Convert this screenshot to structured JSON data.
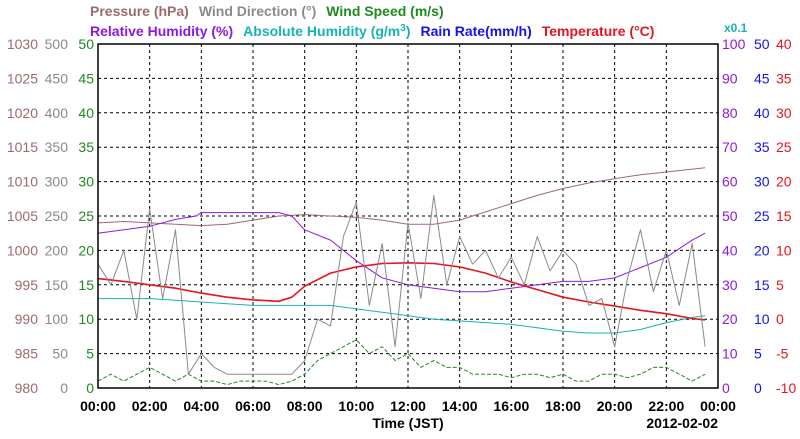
{
  "chart_data": {
    "type": "line",
    "date": "2012-02-02",
    "xlabel": "Time (JST)",
    "x_ticks": [
      "00:00",
      "02:00",
      "04:00",
      "06:00",
      "08:00",
      "10:00",
      "12:00",
      "14:00",
      "16:00",
      "18:00",
      "20:00",
      "22:00",
      "00:00"
    ],
    "x_range_hours": [
      0,
      24
    ],
    "grid": true,
    "legend": {
      "row1": [
        {
          "label": "Pressure (hPa)",
          "color": "#9c6b6b"
        },
        {
          "label": "Wind Direction (°)",
          "color": "#8a8a8a"
        },
        {
          "label": "Wind Speed (m/s)",
          "color": "#1f8a1f"
        }
      ],
      "row2": [
        {
          "label": "Relative Humidity (%)",
          "color": "#8a19e6"
        },
        {
          "label": "Absolute Humidity (g/m",
          "sup": "3",
          "close": ")",
          "color": "#17b3b3"
        },
        {
          "label": "Rain Rate(mm/h)",
          "color": "#1414e6"
        },
        {
          "label": "Temperature (°C)",
          "color": "#e6141e"
        }
      ],
      "abs_humidity_scale": "x0.1"
    },
    "axes": {
      "pressure": {
        "color": "#9c6b6b",
        "range": [
          980,
          1030
        ],
        "ticks": [
          "980",
          "985",
          "990",
          "995",
          "1000",
          "1005",
          "1010",
          "1015",
          "1020",
          "1025",
          "1030"
        ]
      },
      "wind_direction": {
        "color": "#8a8a8a",
        "range": [
          0,
          500
        ],
        "ticks": [
          "0",
          "50",
          "100",
          "150",
          "200",
          "250",
          "300",
          "350",
          "400",
          "450",
          "500"
        ]
      },
      "wind_speed": {
        "color": "#1f8a1f",
        "range": [
          0,
          50
        ],
        "ticks": [
          "0",
          "5",
          "10",
          "15",
          "20",
          "25",
          "30",
          "35",
          "40",
          "45",
          "50"
        ]
      },
      "relative_humidity": {
        "color": "#8a19e6",
        "range": [
          0,
          100
        ],
        "ticks": [
          "0",
          "10",
          "20",
          "30",
          "40",
          "50",
          "60",
          "70",
          "80",
          "90",
          "100"
        ]
      },
      "rain_rate": {
        "color": "#1414e6",
        "range": [
          0,
          50
        ],
        "ticks": [
          "0",
          "5",
          "10",
          "15",
          "20",
          "25",
          "30",
          "35",
          "40",
          "45",
          "50"
        ]
      },
      "temperature": {
        "color": "#e6141e",
        "range": [
          -10,
          40
        ],
        "ticks": [
          "-10",
          "-5",
          "0",
          "5",
          "10",
          "15",
          "20",
          "25",
          "30",
          "35",
          "40"
        ]
      }
    },
    "series": [
      {
        "name": "Pressure (hPa)",
        "color": "#9c6b6b",
        "axis": "pressure",
        "x": [
          0,
          1,
          2,
          3,
          4,
          5,
          6,
          7,
          8,
          9,
          10,
          11,
          12,
          13,
          14,
          15,
          16,
          17,
          18,
          19,
          20,
          21,
          22,
          23.5
        ],
        "y": [
          1004.0,
          1004.2,
          1004.0,
          1003.8,
          1003.6,
          1003.8,
          1004.4,
          1005.0,
          1005.2,
          1005.0,
          1004.8,
          1004.4,
          1003.8,
          1003.8,
          1004.4,
          1005.6,
          1006.8,
          1008.0,
          1009.0,
          1009.8,
          1010.4,
          1011.0,
          1011.4,
          1012.0
        ]
      },
      {
        "name": "Relative Humidity (%)",
        "color": "#8a19e6",
        "axis": "relative_humidity",
        "x": [
          0,
          1,
          2,
          3,
          3.8,
          4,
          5,
          6,
          7,
          7.5,
          8,
          9,
          10,
          11,
          12,
          13,
          14,
          15,
          16,
          17,
          18,
          19,
          20,
          21,
          22,
          23,
          23.5
        ],
        "y": [
          45,
          46,
          47,
          49,
          50,
          51,
          51,
          51,
          51,
          50,
          46,
          43,
          37,
          32,
          30,
          29,
          28,
          28,
          29,
          30,
          31,
          31,
          32,
          35,
          38,
          43,
          45
        ]
      },
      {
        "name": "Absolute Humidity (g/m3) x0.1",
        "color": "#17b3b3",
        "axis": "relative_humidity",
        "x": [
          0,
          1,
          2,
          3,
          4,
          5,
          6,
          7,
          8,
          9,
          10,
          11,
          12,
          13,
          14,
          15,
          16,
          17,
          18,
          19,
          20,
          21,
          22,
          23,
          23.5
        ],
        "y": [
          26,
          26,
          26,
          25.5,
          25,
          24.5,
          24,
          24,
          24,
          24,
          23,
          22,
          21,
          20,
          19.5,
          19,
          18.5,
          17.5,
          16.5,
          16,
          16,
          17,
          19,
          20.5,
          21
        ]
      },
      {
        "name": "Temperature (°C)",
        "color": "#e6141e",
        "axis": "temperature",
        "x": [
          0,
          1,
          2,
          3,
          4,
          5,
          6,
          7,
          7.5,
          8,
          9,
          10,
          11,
          12,
          13,
          14,
          15,
          16,
          17,
          18,
          19,
          20,
          21,
          22,
          23,
          23.5
        ],
        "y": [
          5.9,
          5.5,
          5.0,
          4.5,
          3.8,
          3.2,
          2.8,
          2.6,
          3.2,
          4.8,
          6.7,
          7.6,
          8.1,
          8.2,
          8.1,
          7.6,
          6.7,
          5.4,
          4.3,
          3.2,
          2.5,
          1.9,
          1.3,
          0.8,
          0.1,
          -0.1
        ]
      },
      {
        "name": "Wind Direction (°)",
        "color": "#8a8a8a",
        "axis": "wind_direction",
        "x": [
          0,
          0.5,
          1,
          1.5,
          2,
          2.5,
          3,
          3.5,
          4,
          4.5,
          5,
          5.5,
          6,
          6.5,
          7,
          7.5,
          8,
          8.5,
          9,
          9.5,
          10,
          10.5,
          11,
          11.5,
          12,
          12.5,
          13,
          13.5,
          14,
          14.5,
          15,
          15.5,
          16,
          16.5,
          17,
          17.5,
          18,
          18.5,
          19,
          19.5,
          20,
          20.5,
          21,
          21.5,
          22,
          22.5,
          23,
          23.5
        ],
        "y": [
          180,
          150,
          200,
          100,
          260,
          130,
          230,
          20,
          50,
          30,
          20,
          20,
          20,
          20,
          20,
          20,
          40,
          100,
          90,
          220,
          270,
          120,
          210,
          60,
          240,
          130,
          280,
          150,
          220,
          180,
          200,
          160,
          190,
          150,
          220,
          170,
          200,
          180,
          120,
          130,
          60,
          160,
          230,
          140,
          200,
          120,
          210,
          60
        ]
      },
      {
        "name": "Wind Speed (m/s)",
        "color": "#1f8a1f",
        "axis": "wind_speed",
        "x": [
          0,
          0.5,
          1,
          1.5,
          2,
          2.5,
          3,
          3.5,
          4,
          4.5,
          5,
          5.5,
          6,
          6.5,
          7,
          7.5,
          8,
          8.5,
          9,
          9.5,
          10,
          10.5,
          11,
          11.5,
          12,
          12.5,
          13,
          13.5,
          14,
          14.5,
          15,
          15.5,
          16,
          16.5,
          17,
          17.5,
          18,
          18.5,
          19,
          19.5,
          20,
          20.5,
          21,
          21.5,
          22,
          22.5,
          23,
          23.5
        ],
        "y": [
          1,
          2,
          1,
          2,
          3,
          2,
          1,
          2,
          1,
          1,
          0.5,
          1,
          1,
          1,
          0.5,
          1,
          2,
          4,
          5,
          6,
          7,
          5,
          6,
          4,
          5,
          3,
          4,
          3,
          3,
          2,
          2,
          2,
          1.5,
          2,
          2,
          1.5,
          2,
          1,
          1,
          2,
          2,
          1.5,
          2,
          3,
          3,
          2,
          1,
          2
        ]
      }
    ]
  }
}
